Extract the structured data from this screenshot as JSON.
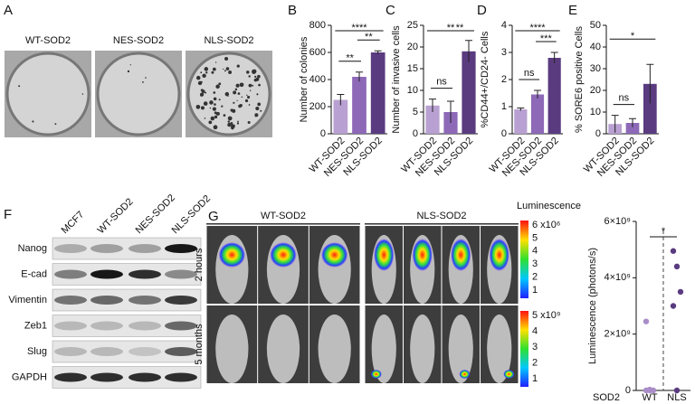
{
  "panel_labels": [
    "A",
    "B",
    "C",
    "D",
    "E",
    "F",
    "G"
  ],
  "colony_images": {
    "labels": [
      "WT-SOD2",
      "NES-SOD2",
      "NLS-SOD2"
    ]
  },
  "blot": {
    "lanes": [
      "MCF7",
      "WT-SOD2",
      "NES-SOD2",
      "NLS-SOD2"
    ],
    "rows": [
      "Nanog",
      "E-cad",
      "Vimentin",
      "Zeb1",
      "Slug",
      "GAPDH"
    ]
  },
  "imaging": {
    "groups": [
      "WT-SOD2",
      "NLS-SOD2"
    ],
    "rows": [
      "2 hours",
      "5 months"
    ],
    "colorbar_title": "Luminescence",
    "colorbar_top_ticks": [
      "6 x10⁶",
      "5",
      "4",
      "3",
      "2",
      "1"
    ],
    "colorbar_bottom_ticks": [
      "5 x10⁹",
      "4",
      "3",
      "2",
      "1"
    ]
  },
  "chart_data": [
    {
      "type": "bar",
      "ylabel": "Number of colonies",
      "categories": [
        "WT-SOD2",
        "NES-SOD2",
        "NLS-SOD2"
      ],
      "values": [
        250,
        420,
        600
      ],
      "errors": [
        40,
        35,
        12
      ],
      "colors": [
        "#b9a0d2",
        "#8d69b8",
        "#5a3b80"
      ],
      "ylim": [
        0,
        800
      ],
      "yticks": [
        0,
        200,
        400,
        600,
        800
      ],
      "significance": [
        "**",
        "**",
        "****"
      ]
    },
    {
      "type": "bar",
      "ylabel": "Number of invasive cells",
      "categories": [
        "WT-SOD2",
        "NES-SOD2",
        "NLS-SOD2"
      ],
      "values": [
        6.5,
        5,
        19
      ],
      "errors": [
        1.5,
        2.5,
        2.5
      ],
      "colors": [
        "#b9a0d2",
        "#8d69b8",
        "#5a3b80"
      ],
      "ylim": [
        0,
        25
      ],
      "yticks": [
        0,
        5,
        10,
        15,
        20,
        25
      ],
      "significance": [
        "ns",
        "**",
        "**"
      ]
    },
    {
      "type": "bar",
      "ylabel": "%CD44+/CD24- Cells",
      "categories": [
        "WT-SOD2",
        "NES-SOD2",
        "NLS-SOD2"
      ],
      "values": [
        0.9,
        1.45,
        2.8
      ],
      "errors": [
        0.05,
        0.15,
        0.2
      ],
      "colors": [
        "#b9a0d2",
        "#8d69b8",
        "#5a3b80"
      ],
      "ylim": [
        0,
        4
      ],
      "yticks": [
        0,
        1,
        2,
        3,
        4
      ],
      "significance": [
        "ns",
        "***",
        "****"
      ]
    },
    {
      "type": "bar",
      "ylabel": "% SORE6 positive Cells",
      "categories": [
        "WT-SOD2",
        "NES-SOD2",
        "NLS-SOD2"
      ],
      "values": [
        4.5,
        5,
        23
      ],
      "errors": [
        4,
        2,
        9
      ],
      "colors": [
        "#b9a0d2",
        "#8d69b8",
        "#5a3b80"
      ],
      "ylim": [
        0,
        50
      ],
      "yticks": [
        0,
        10,
        20,
        30,
        40,
        50
      ],
      "significance": [
        "ns",
        null,
        "*"
      ]
    },
    {
      "type": "strip",
      "ylabel": "Luminescence (photons/s)",
      "xlabel": "SOD2",
      "categories": [
        "WT",
        "NLS"
      ],
      "values": [
        [
          2450000000,
          30000000,
          0,
          0,
          0
        ],
        [
          4950000000,
          4400000000,
          3500000000,
          3000000000,
          0
        ]
      ],
      "colors": [
        "#a98cc8",
        "#5a3b80"
      ],
      "ylim": [
        0,
        6000000000
      ],
      "yticks": [
        0,
        {
          "value": 2000000000,
          "label": "2×10⁹"
        },
        {
          "value": 4000000000,
          "label": "4×10⁹"
        },
        {
          "value": 6000000000,
          "label": "6×10⁹"
        }
      ],
      "significance": "*"
    }
  ]
}
